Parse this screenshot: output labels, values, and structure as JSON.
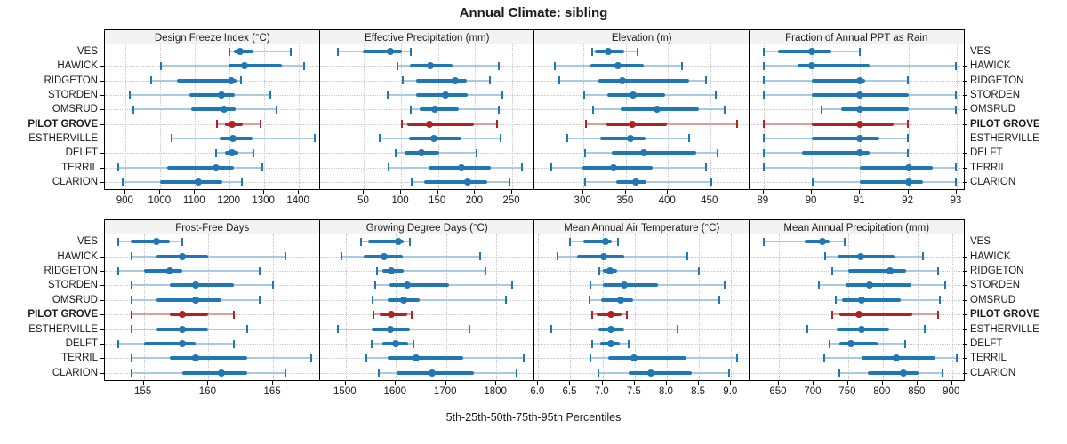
{
  "title": "Annual Climate: sibling",
  "footer": "5th-25th-50th-75th-95th Percentiles",
  "colors": {
    "series": "#2077b4",
    "series_light": "#a8cbe2",
    "highlight": "#b22222",
    "highlight_light": "#d9a0a0",
    "header_bg": "#f2f2f2",
    "grid": "#c8c8c8",
    "border": "#000000",
    "text": "#1a1a1a"
  },
  "chart_data": {
    "type": "interval",
    "subtype": "percentile range plot (dot = median, thick bar = 25th-75th, light line with caps = 5th-95th)",
    "percentile_levels": [
      5,
      25,
      50,
      75,
      95
    ],
    "legend_position": "none",
    "grid": "dotted",
    "categories": [
      "VES",
      "HAWICK",
      "RIDGETON",
      "STORDEN",
      "OMSRUD",
      "PILOT GROVE",
      "ESTHERVILLE",
      "DELFT",
      "TERRIL",
      "CLARION"
    ],
    "highlighted_category": "PILOT GROVE",
    "panels": [
      {
        "title": "Design Freeze Index (°C)",
        "xlim": [
          840,
          1460
        ],
        "ticks": [
          900,
          1000,
          1100,
          1200,
          1300,
          1400
        ],
        "tick_labels": [
          "900",
          "1000",
          "1100",
          "1200",
          "1300",
          "1400"
        ],
        "values": [
          [
            1198,
            1212,
            1230,
            1270,
            1378
          ],
          [
            1000,
            1196,
            1243,
            1352,
            1417
          ],
          [
            972,
            1047,
            1205,
            1220,
            1235
          ],
          [
            910,
            1085,
            1176,
            1215,
            1320
          ],
          [
            922,
            1090,
            1185,
            1218,
            1336
          ],
          [
            1162,
            1186,
            1206,
            1237,
            1291
          ],
          [
            1030,
            1172,
            1210,
            1265,
            1447
          ],
          [
            1160,
            1186,
            1206,
            1226,
            1270
          ],
          [
            878,
            1020,
            1160,
            1213,
            1295
          ],
          [
            890,
            1000,
            1110,
            1180,
            1237
          ]
        ]
      },
      {
        "title": "Effective Precipitation (mm)",
        "xlim": [
          -10,
          280
        ],
        "ticks": [
          50,
          100,
          150,
          200,
          250
        ],
        "tick_labels": [
          "50",
          "100",
          "150",
          "200",
          "250"
        ],
        "values": [
          [
            14,
            48,
            85,
            101,
            114
          ],
          [
            95,
            112,
            139,
            170,
            232
          ],
          [
            102,
            120,
            173,
            189,
            221
          ],
          [
            81,
            120,
            160,
            190,
            237
          ],
          [
            112,
            125,
            145,
            178,
            233
          ],
          [
            100,
            108,
            138,
            198,
            230
          ],
          [
            71,
            111,
            144,
            182,
            235
          ],
          [
            92,
            105,
            128,
            152,
            202
          ],
          [
            83,
            137,
            182,
            221,
            264
          ],
          [
            114,
            131,
            190,
            216,
            247
          ]
        ]
      },
      {
        "title": "Elevation (m)",
        "xlim": [
          242,
          496
        ],
        "ticks": [
          300,
          350,
          400,
          450
        ],
        "tick_labels": [
          "300",
          "350",
          "400",
          "450"
        ],
        "values": [
          [
            310,
            314,
            329,
            348,
            365
          ],
          [
            266,
            308,
            341,
            371,
            417
          ],
          [
            271,
            318,
            346,
            425,
            446
          ],
          [
            300,
            328,
            359,
            397,
            457
          ],
          [
            311,
            344,
            387,
            437,
            468
          ],
          [
            303,
            327,
            358,
            399,
            482
          ],
          [
            280,
            320,
            356,
            374,
            426
          ],
          [
            301,
            333,
            371,
            433,
            459
          ],
          [
            261,
            299,
            336,
            382,
            445
          ],
          [
            301,
            339,
            362,
            375,
            452
          ]
        ]
      },
      {
        "title": "Fraction of Annual PPT as Rain",
        "xlim": [
          88.7,
          93.15
        ],
        "ticks": [
          89,
          90,
          91,
          92,
          93
        ],
        "tick_labels": [
          "89",
          "90",
          "91",
          "92",
          "93"
        ],
        "values": [
          [
            89,
            89.3,
            90,
            90.4,
            91
          ],
          [
            89,
            89.7,
            90,
            91.2,
            93
          ],
          [
            89,
            90,
            91,
            91.1,
            92
          ],
          [
            89,
            90,
            91,
            92,
            93
          ],
          [
            90.2,
            90.6,
            91,
            92,
            93
          ],
          [
            89,
            90,
            91,
            91.7,
            92
          ],
          [
            89,
            90,
            91,
            91.4,
            92
          ],
          [
            89,
            89.8,
            91,
            91.2,
            92
          ],
          [
            89,
            91,
            92,
            92.5,
            93
          ],
          [
            90,
            91,
            92,
            92.3,
            93
          ]
        ]
      },
      {
        "title": "Frost-Free Days",
        "xlim": [
          152,
          168.6
        ],
        "ticks": [
          155,
          160,
          165
        ],
        "tick_labels": [
          "155",
          "160",
          "165"
        ],
        "values": [
          [
            153,
            154,
            156,
            157,
            158
          ],
          [
            154,
            156,
            158,
            160,
            166
          ],
          [
            153,
            155,
            157,
            158,
            164
          ],
          [
            154,
            157,
            159,
            162,
            165
          ],
          [
            154,
            156,
            159,
            161,
            164
          ],
          [
            154,
            157,
            158,
            160,
            162
          ],
          [
            154,
            156,
            158,
            160,
            163
          ],
          [
            153,
            155,
            158,
            159,
            162
          ],
          [
            154,
            157,
            159,
            163,
            168
          ],
          [
            154,
            158,
            161,
            163,
            166
          ]
        ]
      },
      {
        "title": "Growing Degree Days (°C)",
        "xlim": [
          1448,
          1876
        ],
        "ticks": [
          1500,
          1600,
          1700,
          1800
        ],
        "tick_labels": [
          "1500",
          "1600",
          "1700",
          "1800"
        ],
        "values": [
          [
            1530,
            1545,
            1605,
            1616,
            1628
          ],
          [
            1491,
            1535,
            1577,
            1613,
            1769
          ],
          [
            1561,
            1573,
            1590,
            1616,
            1780
          ],
          [
            1558,
            1587,
            1622,
            1706,
            1833
          ],
          [
            1552,
            1584,
            1615,
            1648,
            1820
          ],
          [
            1554,
            1567,
            1591,
            1622,
            1633
          ],
          [
            1484,
            1552,
            1589,
            1628,
            1747
          ],
          [
            1551,
            1573,
            1600,
            1625,
            1635
          ],
          [
            1541,
            1584,
            1640,
            1735,
            1855
          ],
          [
            1565,
            1602,
            1673,
            1756,
            1841
          ]
        ]
      },
      {
        "title": "Mean Annual Air Temperature (°C)",
        "xlim": [
          5.94,
          9.28
        ],
        "ticks": [
          6.0,
          6.5,
          7.0,
          7.5,
          8.0,
          8.5,
          9.0
        ],
        "tick_labels": [
          "6.0",
          "6.5",
          "7.0",
          "7.5",
          "8.0",
          "8.5",
          "9.0"
        ],
        "values": [
          [
            6.49,
            6.7,
            7.05,
            7.15,
            7.25
          ],
          [
            6.29,
            6.6,
            7.02,
            7.34,
            8.33
          ],
          [
            6.94,
            7.0,
            7.12,
            7.22,
            8.51
          ],
          [
            6.8,
            7.0,
            7.34,
            7.86,
            8.9
          ],
          [
            6.79,
            6.98,
            7.28,
            7.48,
            8.83
          ],
          [
            6.83,
            6.91,
            7.13,
            7.3,
            7.39
          ],
          [
            6.19,
            6.94,
            7.13,
            7.34,
            8.18
          ],
          [
            6.83,
            6.97,
            7.13,
            7.27,
            7.41
          ],
          [
            6.81,
            7.09,
            7.49,
            8.3,
            9.1
          ],
          [
            6.93,
            7.41,
            7.75,
            8.39,
            8.97
          ]
        ]
      },
      {
        "title": "Mean Annual Precipitation (mm)",
        "xlim": [
          607,
          917
        ],
        "ticks": [
          650,
          700,
          750,
          800,
          850,
          900
        ],
        "tick_labels": [
          "650",
          "700",
          "750",
          "800",
          "850",
          "900"
        ],
        "values": [
          [
            628,
            687,
            713,
            723,
            745
          ],
          [
            716,
            735,
            768,
            817,
            859
          ],
          [
            726,
            750,
            811,
            833,
            880
          ],
          [
            707,
            746,
            781,
            841,
            891
          ],
          [
            732,
            741,
            770,
            826,
            883
          ],
          [
            727,
            737,
            766,
            843,
            881
          ],
          [
            691,
            733,
            770,
            809,
            861
          ],
          [
            722,
            737,
            754,
            793,
            833
          ],
          [
            715,
            770,
            820,
            876,
            907
          ],
          [
            737,
            778,
            830,
            852,
            887
          ]
        ]
      }
    ]
  }
}
